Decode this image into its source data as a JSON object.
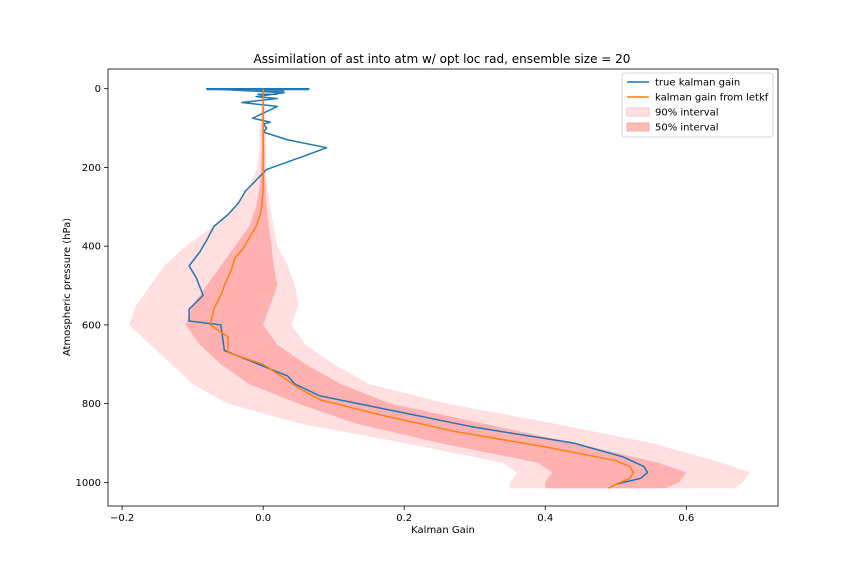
{
  "chart_data": {
    "type": "line",
    "title": "Assimilation of ast into atm w/ opt loc rad, ensemble size = 20",
    "xlabel": "Kalman Gain",
    "ylabel": "Atmospheric pressure (hPa)",
    "xlim": [
      -0.22,
      0.73
    ],
    "ylim": [
      1060,
      -50
    ],
    "y_inverted": true,
    "x_ticks": [
      -0.2,
      0.0,
      0.2,
      0.4,
      0.6
    ],
    "x_tick_labels": [
      "−0.2",
      "0.0",
      "0.2",
      "0.4",
      "0.6"
    ],
    "y_ticks": [
      0,
      200,
      400,
      600,
      800,
      1000
    ],
    "y_tick_labels": [
      "0",
      "200",
      "400",
      "600",
      "800",
      "1000"
    ],
    "grid": false,
    "legend_position": "top-right",
    "bands": [
      {
        "name": "90% interval",
        "color": "#ffc0c0",
        "opacity": 0.5,
        "pressure": [
          0,
          20,
          50,
          100,
          150,
          200,
          250,
          300,
          350,
          400,
          450,
          500,
          550,
          600,
          650,
          700,
          750,
          800,
          850,
          900,
          950,
          975,
          1000,
          1015
        ],
        "lower": [
          0,
          -0.003,
          -0.003,
          -0.005,
          -0.005,
          -0.008,
          -0.02,
          -0.04,
          -0.07,
          -0.11,
          -0.14,
          -0.16,
          -0.18,
          -0.19,
          -0.16,
          -0.13,
          -0.1,
          -0.05,
          0.05,
          0.2,
          0.34,
          0.36,
          0.35,
          0.35
        ],
        "upper": [
          0,
          0.002,
          0.003,
          0.004,
          0.004,
          0.004,
          0.006,
          0.01,
          0.015,
          0.02,
          0.035,
          0.045,
          0.05,
          0.04,
          0.06,
          0.1,
          0.15,
          0.26,
          0.41,
          0.55,
          0.65,
          0.69,
          0.68,
          0.67
        ]
      },
      {
        "name": "50% interval",
        "color": "#ff9c9c",
        "opacity": 0.7,
        "pressure": [
          0,
          50,
          100,
          150,
          200,
          250,
          300,
          350,
          400,
          450,
          500,
          550,
          600,
          650,
          700,
          750,
          800,
          850,
          900,
          950,
          975,
          1000,
          1015
        ],
        "lower": [
          0,
          -0.001,
          -0.002,
          -0.002,
          -0.003,
          -0.005,
          -0.01,
          -0.02,
          -0.04,
          -0.06,
          -0.08,
          -0.1,
          -0.11,
          -0.09,
          -0.06,
          -0.02,
          0.05,
          0.13,
          0.25,
          0.39,
          0.41,
          0.4,
          0.4
        ],
        "upper": [
          0,
          0.001,
          0.001,
          0.002,
          0.002,
          0.003,
          0.005,
          0.008,
          0.012,
          0.015,
          0.02,
          0.01,
          0.0,
          0.02,
          0.06,
          0.11,
          0.18,
          0.31,
          0.44,
          0.56,
          0.6,
          0.59,
          0.57
        ]
      }
    ],
    "series": [
      {
        "name": "true kalman gain",
        "color": "#1f77b4",
        "x": [
          0,
          0.065,
          -0.08,
          0.03,
          -0.01,
          0.02,
          -0.03,
          0.02,
          -0.015,
          0.01,
          0.0,
          0.005,
          0.0,
          0.035,
          0.09,
          0.06,
          0.005,
          -0.025,
          -0.035,
          -0.05,
          -0.07,
          -0.08,
          -0.09,
          -0.105,
          -0.095,
          -0.085,
          -0.105,
          -0.105,
          -0.06,
          -0.055,
          0.035,
          0.045,
          0.08,
          0.19,
          0.3,
          0.44,
          0.51,
          0.54,
          0.545,
          0.535,
          0.5
        ],
        "y": [
          0,
          0,
          0,
          10,
          20,
          25,
          35,
          45,
          75,
          85,
          90,
          100,
          110,
          130,
          150,
          170,
          205,
          260,
          290,
          320,
          350,
          385,
          415,
          450,
          480,
          525,
          560,
          590,
          600,
          665,
          730,
          750,
          780,
          820,
          860,
          900,
          935,
          960,
          975,
          990,
          1005
        ],
        "extra_segments": [
          {
            "x": [
              -0.08,
              0.065
            ],
            "y": [
              2,
              2
            ]
          },
          {
            "x": [
              -0.012,
              0.03
            ],
            "y": [
              6,
              6
            ]
          },
          {
            "x": [
              -0.008,
              0.02
            ],
            "y": [
              14,
              14
            ]
          }
        ]
      },
      {
        "name": "kalman gain from letkf",
        "color": "#ff7f0e",
        "x": [
          0,
          0.0,
          0.0,
          0.0,
          -0.002,
          -0.004,
          -0.01,
          -0.02,
          -0.03,
          -0.04,
          -0.045,
          -0.055,
          -0.06,
          -0.07,
          -0.075,
          -0.05,
          -0.05,
          0.0,
          0.03,
          0.05,
          0.08,
          0.17,
          0.27,
          0.4,
          0.5,
          0.52,
          0.525,
          0.52,
          0.5,
          0.49
        ],
        "y": [
          0,
          100,
          200,
          250,
          300,
          320,
          350,
          380,
          410,
          430,
          460,
          500,
          525,
          560,
          600,
          630,
          670,
          700,
          735,
          760,
          790,
          830,
          870,
          910,
          945,
          960,
          975,
          990,
          1005,
          1015
        ]
      }
    ]
  }
}
